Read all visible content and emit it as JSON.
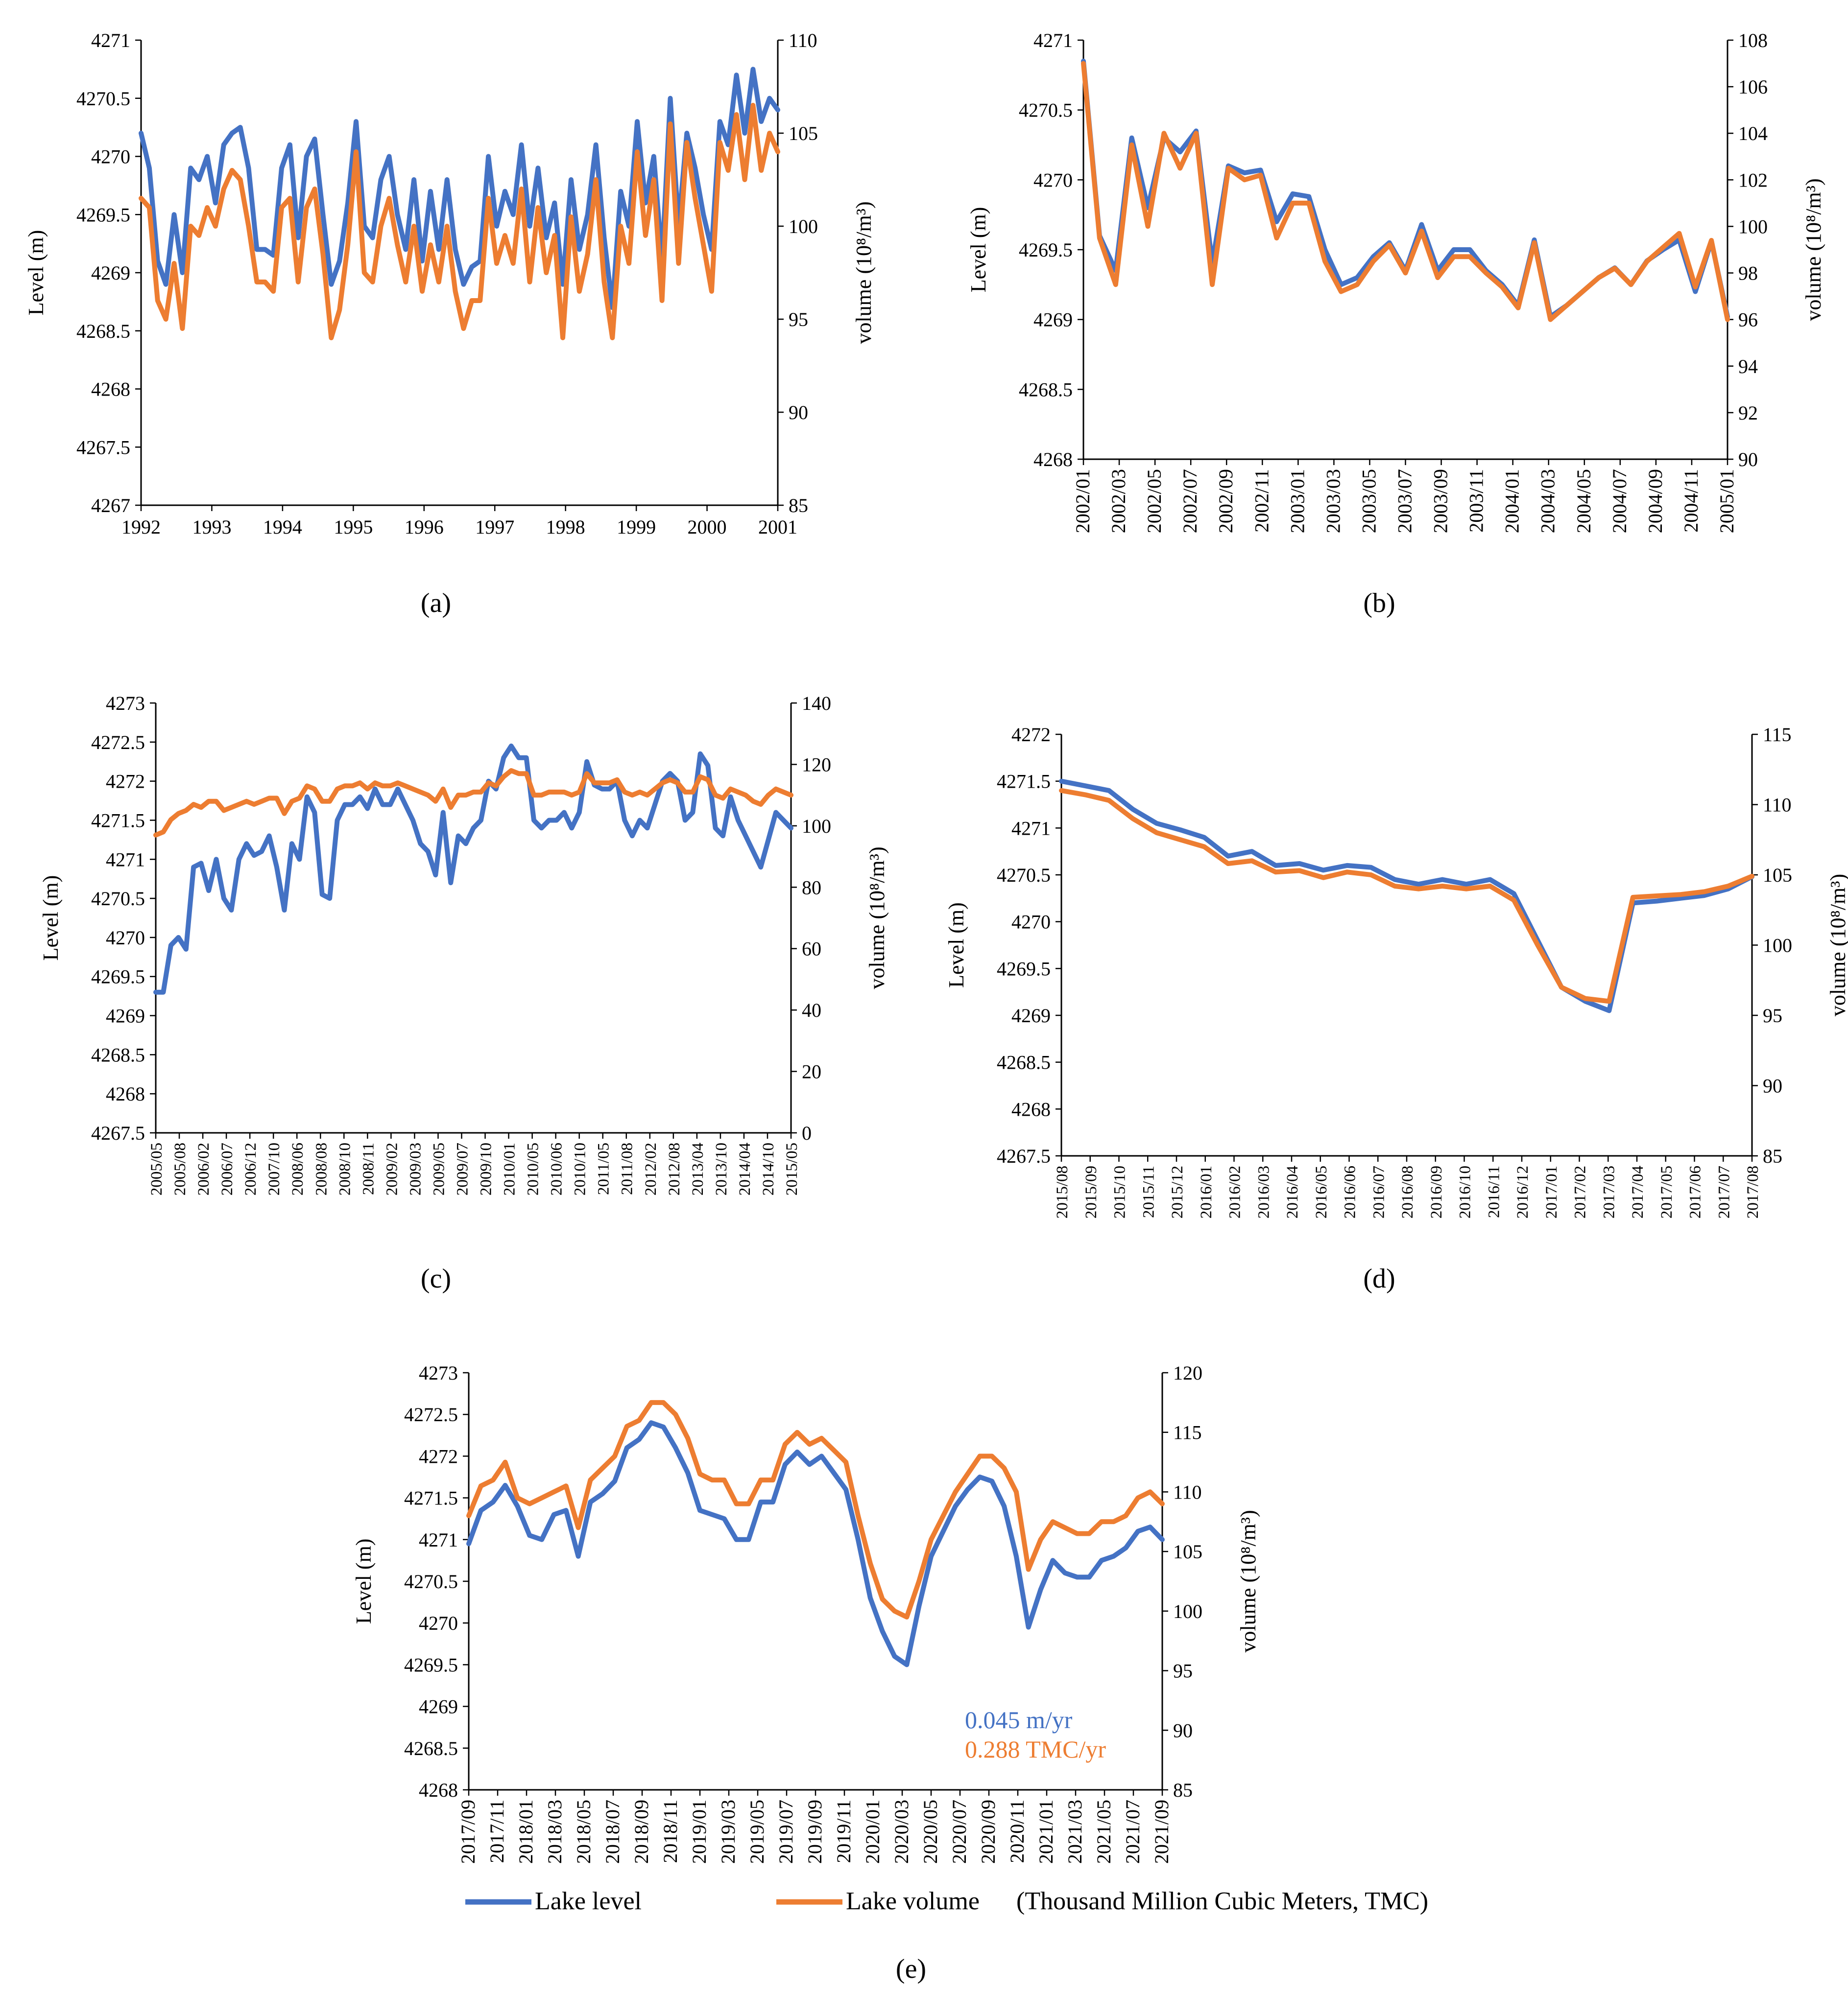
{
  "figure": {
    "legend": {
      "level_label": "Lake level",
      "volume_label": "Lake volume",
      "volume_note": "(Thousand Million Cubic Meters, TMC)"
    },
    "colors": {
      "level": "#4472C4",
      "volume": "#ED7D31",
      "axis": "#000000"
    }
  },
  "chart_data": [
    {
      "id": "a",
      "type": "line",
      "caption": "(a)",
      "ylabel_left": "Level (m)",
      "ylabel_right": "volume (10⁸/m³)",
      "ylim_left": [
        4267,
        4271
      ],
      "yticks_left": [
        4267,
        4267.5,
        4268,
        4268.5,
        4269,
        4269.5,
        4270,
        4270.5,
        4271
      ],
      "ylim_right": [
        85,
        110
      ],
      "yticks_right": [
        85,
        90,
        95,
        100,
        105,
        110
      ],
      "x_ticks": [
        "1992",
        "1993",
        "1994",
        "1995",
        "1996",
        "1997",
        "1998",
        "1999",
        "2000",
        "2001"
      ],
      "series": [
        {
          "name": "Lake level",
          "axis": "left",
          "values": [
            4270.2,
            4269.9,
            4269.1,
            4268.9,
            4269.5,
            4269,
            4269.9,
            4269.8,
            4270,
            4269.6,
            4270.1,
            4270.2,
            4270.25,
            4269.9,
            4269.2,
            4269.2,
            4269.15,
            4269.9,
            4270.1,
            4269.3,
            4270.0,
            4270.15,
            4269.5,
            4268.9,
            4269.1,
            4269.6,
            4270.3,
            4269.4,
            4269.3,
            4269.8,
            4270,
            4269.5,
            4269.2,
            4269.8,
            4269.1,
            4269.7,
            4269.2,
            4269.8,
            4269.2,
            4268.9,
            4269.05,
            4269.1,
            4270.0,
            4269.4,
            4269.7,
            4269.5,
            4270.1,
            4269.4,
            4269.9,
            4269.3,
            4269.6,
            4268.9,
            4269.8,
            4269.2,
            4269.5,
            4270.1,
            4269.3,
            4268.7,
            4269.7,
            4269.4,
            4270.3,
            4269.6,
            4270.0,
            4269.1,
            4270.5,
            4269.4,
            4270.2,
            4269.9,
            4269.5,
            4269.2,
            4270.3,
            4270.1,
            4270.7,
            4270.2,
            4270.75,
            4270.3,
            4270.5,
            4270.4
          ]
        },
        {
          "name": "Lake volume",
          "axis": "right",
          "values": [
            101.5,
            101,
            96,
            95,
            98,
            94.5,
            100,
            99.5,
            101,
            100,
            102,
            103,
            102.5,
            100,
            97,
            97,
            96.5,
            101,
            101.5,
            97,
            101,
            102,
            98.5,
            94,
            95.5,
            99,
            104,
            97.5,
            97,
            100,
            101.5,
            99,
            97,
            100,
            96.5,
            99,
            97,
            100,
            96.5,
            94.5,
            96,
            96,
            101.5,
            98,
            99.5,
            98,
            102,
            97,
            101,
            97.5,
            99.5,
            94,
            100.5,
            96.5,
            98.5,
            102.5,
            97,
            94,
            100,
            98,
            104,
            99.5,
            102.5,
            96,
            105.5,
            98,
            104.5,
            101.5,
            99,
            96.5,
            104.5,
            103,
            106,
            102.5,
            106.5,
            103,
            105,
            104
          ]
        }
      ]
    },
    {
      "id": "b",
      "type": "line",
      "caption": "(b)",
      "ylabel_left": "Level (m)",
      "ylabel_right": "volume (10⁸/m³)",
      "ylim_left": [
        4268,
        4271
      ],
      "yticks_left": [
        4268,
        4268.5,
        4269,
        4269.5,
        4270,
        4270.5,
        4271
      ],
      "ylim_right": [
        90,
        108
      ],
      "yticks_right": [
        90,
        92,
        94,
        96,
        98,
        100,
        102,
        104,
        106,
        108
      ],
      "x_ticks": [
        "2002/01",
        "2002/03",
        "2002/05",
        "2002/07",
        "2002/09",
        "2002/11",
        "2003/01",
        "2003/03",
        "2003/05",
        "2003/07",
        "2003/09",
        "2003/11",
        "2004/01",
        "2004/03",
        "2004/05",
        "2004/07",
        "2004/09",
        "2004/11",
        "2005/01"
      ],
      "series": [
        {
          "name": "Lake level",
          "axis": "left",
          "values": [
            4270.85,
            4269.6,
            4269.35,
            4270.3,
            4269.8,
            4270.3,
            4270.2,
            4270.35,
            4269.4,
            4270.1,
            4270.05,
            4270.07,
            4269.7,
            4269.9,
            4269.88,
            4269.5,
            4269.25,
            4269.3,
            4269.45,
            4269.55,
            4269.35,
            4269.68,
            4269.35,
            4269.5,
            4269.5,
            4269.35,
            4269.25,
            4269.1,
            4269.57,
            4269.02,
            4269.1,
            4269.2,
            4269.3,
            4269.37,
            4269.25,
            4269.42,
            4269.5,
            4269.57,
            4269.2,
            4269.56,
            4269.02
          ]
        },
        {
          "name": "Lake volume",
          "axis": "right",
          "values": [
            107,
            99.5,
            97.5,
            103.5,
            100,
            104,
            102.5,
            104,
            97.5,
            102.5,
            102,
            102.2,
            99.5,
            101,
            101,
            98.5,
            97.2,
            97.5,
            98.5,
            99.2,
            98,
            99.8,
            97.8,
            98.7,
            98.7,
            98,
            97.4,
            96.5,
            99.3,
            96,
            96.6,
            97.2,
            97.8,
            98.2,
            97.5,
            98.5,
            99.1,
            99.7,
            97.4,
            99.4,
            96
          ]
        }
      ]
    },
    {
      "id": "c",
      "type": "line",
      "caption": "(c)",
      "ylabel_left": "Level (m)",
      "ylabel_right": "volume (10⁸/m³)",
      "ylim_left": [
        4267.5,
        4273
      ],
      "yticks_left": [
        4267.5,
        4268,
        4268.5,
        4269,
        4269.5,
        4270,
        4270.5,
        4271,
        4271.5,
        4272,
        4272.5,
        4273
      ],
      "ylim_right": [
        0,
        140
      ],
      "yticks_right": [
        0,
        20,
        40,
        60,
        80,
        100,
        120,
        140
      ],
      "x_ticks": [
        "2005/05",
        "2005/08",
        "2006/02",
        "2006/07",
        "2006/12",
        "2007/10",
        "2008/06",
        "2008/08",
        "2008/10",
        "2008/11",
        "2009/02",
        "2009/03",
        "2009/05",
        "2009/07",
        "2009/10",
        "2010/01",
        "2010/05",
        "2010/06",
        "2010/10",
        "2011/05",
        "2011/08",
        "2012/02",
        "2012/08",
        "2013/04",
        "2013/10",
        "2014/04",
        "2014/10",
        "2015/05"
      ],
      "series": [
        {
          "name": "Lake level",
          "axis": "left",
          "values": [
            4269.3,
            4269.3,
            4269.9,
            4270.0,
            4269.85,
            4270.9,
            4270.95,
            4270.6,
            4271.0,
            4270.5,
            4270.35,
            4271.0,
            4271.2,
            4271.05,
            4271.1,
            4271.3,
            4270.9,
            4270.35,
            4271.2,
            4271.0,
            4271.8,
            4271.6,
            4270.55,
            4270.5,
            4271.5,
            4271.7,
            4271.7,
            4271.8,
            4271.65,
            4271.9,
            4271.7,
            4271.7,
            4271.9,
            4271.7,
            4271.5,
            4271.2,
            4271.1,
            4270.8,
            4271.6,
            4270.7,
            4271.3,
            4271.2,
            4271.4,
            4271.5,
            4272.0,
            4271.9,
            4272.3,
            4272.45,
            4272.3,
            4272.3,
            4271.5,
            4271.4,
            4271.5,
            4271.5,
            4271.6,
            4271.4,
            4271.6,
            4272.25,
            4271.95,
            4271.9,
            4271.9,
            4272.0,
            4271.5,
            4271.3,
            4271.5,
            4271.4,
            4271.7,
            4272.0,
            4272.1,
            4272.0,
            4271.5,
            4271.6,
            4272.35,
            4272.2,
            4271.4,
            4271.3,
            4271.8,
            4271.5,
            4271.3,
            4271.1,
            4270.9,
            4271.25,
            4271.6,
            4271.5,
            4271.4
          ]
        },
        {
          "name": "Lake volume",
          "axis": "right",
          "values": [
            97,
            98,
            102,
            104,
            105,
            107,
            106,
            108,
            108,
            105,
            106,
            107,
            108,
            107,
            108,
            109,
            109,
            104,
            108,
            109,
            113,
            112,
            108,
            108,
            112,
            113,
            113,
            114,
            112,
            114,
            113,
            113,
            114,
            113,
            112,
            111,
            110,
            108,
            112,
            106,
            110,
            110,
            111,
            111,
            114,
            113,
            116,
            118,
            117,
            117,
            110,
            110,
            111,
            111,
            111,
            110,
            111,
            117,
            114,
            114,
            114,
            115,
            111,
            110,
            111,
            110,
            112,
            114,
            115,
            114,
            111,
            111,
            116,
            115,
            110,
            109,
            112,
            111,
            110,
            108,
            107,
            110,
            112,
            111,
            110
          ]
        }
      ]
    },
    {
      "id": "d",
      "type": "line",
      "caption": "(d)",
      "ylabel_left": "Level (m)",
      "ylabel_right": "volume (10⁸/m³)",
      "ylim_left": [
        4267.5,
        4272
      ],
      "yticks_left": [
        4267.5,
        4268,
        4268.5,
        4269,
        4269.5,
        4270,
        4270.5,
        4271,
        4271.5,
        4272
      ],
      "ylim_right": [
        85,
        115
      ],
      "yticks_right": [
        85,
        90,
        95,
        100,
        105,
        110,
        115
      ],
      "x_ticks": [
        "2015/08",
        "2015/09",
        "2015/10",
        "2015/11",
        "2015/12",
        "2016/01",
        "2016/02",
        "2016/03",
        "2016/04",
        "2016/05",
        "2016/06",
        "2016/07",
        "2016/08",
        "2016/09",
        "2016/10",
        "2016/11",
        "2016/12",
        "2017/01",
        "2017/02",
        "2017/03",
        "2017/04",
        "2017/05",
        "2017/06",
        "2017/07",
        "2017/08"
      ],
      "series": [
        {
          "name": "Lake level",
          "axis": "left",
          "values": [
            4271.5,
            4271.45,
            4271.4,
            4271.2,
            4271.05,
            4270.98,
            4270.9,
            4270.7,
            4270.75,
            4270.6,
            4270.62,
            4270.55,
            4270.6,
            4270.58,
            4270.45,
            4270.4,
            4270.45,
            4270.4,
            4270.45,
            4270.3,
            4269.8,
            4269.3,
            4269.15,
            4269.05,
            4270.2,
            4270.22,
            4270.25,
            4270.28,
            4270.35,
            4270.48
          ]
        },
        {
          "name": "Lake volume",
          "axis": "right",
          "values": [
            111,
            110.7,
            110.3,
            109,
            108,
            107.5,
            107,
            105.8,
            106,
            105.2,
            105.3,
            104.8,
            105.2,
            105,
            104.2,
            104,
            104.2,
            104,
            104.2,
            103.2,
            100,
            97,
            96.2,
            96,
            103.4,
            103.5,
            103.6,
            103.8,
            104.2,
            104.9
          ]
        }
      ]
    },
    {
      "id": "e",
      "type": "line",
      "caption": "(e)",
      "ylabel_left": "Level (m)",
      "ylabel_right": "volume (10⁸/m³)",
      "ylim_left": [
        4268,
        4273
      ],
      "yticks_left": [
        4268,
        4268.5,
        4269,
        4269.5,
        4270,
        4270.5,
        4271,
        4271.5,
        4272,
        4272.5,
        4273
      ],
      "ylim_right": [
        85,
        120
      ],
      "yticks_right": [
        85,
        90,
        95,
        100,
        105,
        110,
        115,
        120
      ],
      "x_ticks": [
        "2017/09",
        "2017/11",
        "2018/01",
        "2018/03",
        "2018/05",
        "2018/07",
        "2018/09",
        "2018/11",
        "2019/01",
        "2019/03",
        "2019/05",
        "2019/07",
        "2019/09",
        "2019/11",
        "2020/01",
        "2020/03",
        "2020/05",
        "2020/07",
        "2020/09",
        "2020/11",
        "2021/01",
        "2021/03",
        "2021/05",
        "2021/07",
        "2021/09"
      ],
      "annotations": [
        "0.045 m/yr",
        "0.288 TMC/yr"
      ],
      "series": [
        {
          "name": "Lake level",
          "axis": "left",
          "values": [
            4270.95,
            4271.35,
            4271.45,
            4271.65,
            4271.4,
            4271.05,
            4271.0,
            4271.3,
            4271.35,
            4270.8,
            4271.45,
            4271.55,
            4271.7,
            4272.1,
            4272.2,
            4272.4,
            4272.35,
            4272.1,
            4271.8,
            4271.35,
            4271.3,
            4271.25,
            4271.0,
            4271.0,
            4271.45,
            4271.45,
            4271.9,
            4272.05,
            4271.9,
            4272.0,
            4271.8,
            4271.6,
            4271.0,
            4270.3,
            4269.9,
            4269.6,
            4269.5,
            4270.2,
            4270.8,
            4271.1,
            4271.4,
            4271.6,
            4271.75,
            4271.7,
            4271.4,
            4270.8,
            4269.95,
            4270.4,
            4270.75,
            4270.6,
            4270.55,
            4270.55,
            4270.75,
            4270.8,
            4270.9,
            4271.1,
            4271.15,
            4271.0
          ]
        },
        {
          "name": "Lake volume",
          "axis": "right",
          "values": [
            108,
            110.5,
            111,
            112.5,
            109.5,
            109,
            109.5,
            110,
            110.5,
            107,
            111,
            112,
            113,
            115.5,
            116,
            117.5,
            117.5,
            116.5,
            114.5,
            111.5,
            111,
            111,
            109,
            109,
            111,
            111,
            114,
            115,
            114,
            114.5,
            113.5,
            112.5,
            108,
            104,
            101,
            100,
            99.5,
            102.5,
            106,
            108,
            110,
            111.5,
            113,
            113,
            112,
            110,
            103.5,
            106,
            107.5,
            107,
            106.5,
            106.5,
            107.5,
            107.5,
            108,
            109.5,
            110,
            109
          ]
        }
      ]
    }
  ]
}
